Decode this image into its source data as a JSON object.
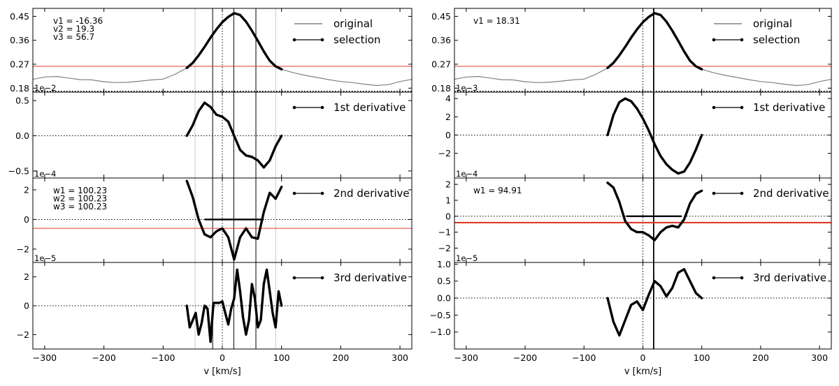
{
  "chart_data": [
    {
      "type": "line",
      "figure": "left",
      "xlabel": "v [km/s]",
      "xlim": [
        -320,
        320
      ],
      "x_ticks": [
        -300,
        -200,
        -100,
        0,
        100,
        200,
        300
      ],
      "vlines_solid": [
        -16.36,
        19.3,
        56.7
      ],
      "vlines_gray": [
        -46,
        90
      ],
      "panels": [
        {
          "id": "spectrum",
          "ylim": [
            0.165,
            0.48
          ],
          "y_ticks": [
            0.18,
            0.27,
            0.36,
            0.45
          ],
          "y_tick_labels": [
            "0.18",
            "0.27",
            "0.36",
            "0.45"
          ],
          "offset_text": "1e−2",
          "hline_red": 0.262,
          "hline_dotted_black": 0.168,
          "annotations": [
            "v1 = -16.36",
            "v2 = 19.3",
            "v3 = 56.7"
          ],
          "legend": [
            "original",
            "selection"
          ],
          "series": [
            {
              "name": "original",
              "color": "#808080",
              "style": "solid",
              "x": [
                -320,
                -300,
                -280,
                -260,
                -240,
                -220,
                -200,
                -180,
                -160,
                -140,
                -120,
                -100,
                -80,
                -60,
                -50,
                -40,
                -30,
                -20,
                -10,
                0,
                10,
                20,
                30,
                40,
                50,
                60,
                70,
                80,
                90,
                100,
                120,
                140,
                160,
                180,
                200,
                220,
                240,
                260,
                280,
                300,
                320
              ],
              "y": [
                0.213,
                0.222,
                0.224,
                0.218,
                0.212,
                0.211,
                0.204,
                0.201,
                0.202,
                0.206,
                0.211,
                0.214,
                0.232,
                0.256,
                0.275,
                0.303,
                0.335,
                0.37,
                0.401,
                0.428,
                0.448,
                0.462,
                0.455,
                0.43,
                0.396,
                0.358,
                0.318,
                0.283,
                0.262,
                0.251,
                0.238,
                0.228,
                0.22,
                0.212,
                0.205,
                0.201,
                0.195,
                0.19,
                0.193,
                0.205,
                0.213
              ]
            },
            {
              "name": "selection",
              "color": "#000000",
              "style": "thick",
              "x": [
                -60,
                -50,
                -40,
                -30,
                -20,
                -10,
                0,
                10,
                20,
                30,
                40,
                50,
                60,
                70,
                80,
                90,
                100
              ],
              "y": [
                0.256,
                0.275,
                0.303,
                0.335,
                0.37,
                0.401,
                0.428,
                0.448,
                0.462,
                0.455,
                0.43,
                0.396,
                0.358,
                0.318,
                0.283,
                0.262,
                0.251
              ]
            }
          ]
        },
        {
          "id": "d1",
          "ylim": [
            -0.6,
            0.62
          ],
          "y_ticks": [
            -0.5,
            0.0,
            0.5
          ],
          "y_tick_labels": [
            "−0.5",
            "0.0",
            "0.5"
          ],
          "offset_text": "1e−4",
          "hline_dotted_black": 0,
          "legend": [
            "1st derivative"
          ],
          "series": [
            {
              "name": "1st derivative",
              "color": "#000000",
              "style": "thick",
              "x": [
                -60,
                -50,
                -40,
                -30,
                -20,
                -10,
                0,
                10,
                20,
                30,
                40,
                50,
                60,
                70,
                80,
                90,
                100
              ],
              "y": [
                0.0,
                0.15,
                0.35,
                0.47,
                0.41,
                0.3,
                0.27,
                0.2,
                0.0,
                -0.2,
                -0.28,
                -0.3,
                -0.35,
                -0.45,
                -0.35,
                -0.15,
                0.0
              ]
            }
          ]
        },
        {
          "id": "d2",
          "ylim": [
            -2.9,
            2.8
          ],
          "y_ticks": [
            -2,
            0,
            2
          ],
          "y_tick_labels": [
            "−2",
            "0",
            "2"
          ],
          "offset_text": "1e−5",
          "hline_red": -0.6,
          "hline_dotted_black": 0,
          "segment_black": {
            "x": [
              -30,
              70
            ],
            "y": 0
          },
          "annotations": [
            "w1 = 100.23",
            "w2 = 100.23",
            "w3 = 100.23"
          ],
          "legend": [
            "2nd derivative"
          ],
          "series": [
            {
              "name": "2nd derivative",
              "color": "#000000",
              "style": "thick",
              "x": [
                -60,
                -50,
                -40,
                -30,
                -20,
                -10,
                0,
                10,
                20,
                30,
                40,
                50,
                60,
                70,
                80,
                90,
                100
              ],
              "y": [
                2.6,
                1.5,
                0.0,
                -1.0,
                -1.2,
                -0.8,
                -0.6,
                -1.2,
                -2.7,
                -1.2,
                -0.6,
                -1.2,
                -1.3,
                0.5,
                1.8,
                1.4,
                2.2
              ]
            }
          ]
        },
        {
          "id": "d3",
          "ylim": [
            -3.0,
            3.0
          ],
          "y_ticks": [
            -2,
            0,
            2
          ],
          "y_tick_labels": [
            "−2",
            "0",
            "2"
          ],
          "hline_dotted_black": 0,
          "legend": [
            "3rd derivative"
          ],
          "series": [
            {
              "name": "3rd derivative",
              "color": "#000000",
              "style": "thick",
              "x": [
                -60,
                -55,
                -50,
                -45,
                -40,
                -35,
                -30,
                -25,
                -20,
                -15,
                -10,
                -5,
                0,
                5,
                10,
                15,
                20,
                25,
                30,
                35,
                40,
                45,
                50,
                55,
                60,
                65,
                70,
                75,
                80,
                85,
                90,
                95,
                100
              ],
              "y": [
                0.0,
                -1.5,
                -1.0,
                -0.5,
                -2.0,
                -1.2,
                0.0,
                -0.2,
                -2.5,
                0.2,
                0.2,
                0.2,
                0.3,
                -0.5,
                -1.3,
                -0.2,
                0.5,
                2.5,
                1.0,
                -0.8,
                -2.0,
                -1.0,
                1.5,
                0.5,
                -1.5,
                -1.0,
                1.5,
                2.5,
                1.0,
                -0.5,
                -1.5,
                1.0,
                0.0
              ]
            }
          ]
        }
      ]
    },
    {
      "type": "line",
      "figure": "right",
      "xlabel": "v [km/s]",
      "xlim": [
        -320,
        320
      ],
      "x_ticks": [
        -300,
        -200,
        -100,
        0,
        100,
        200,
        300
      ],
      "vlines_solid": [
        18.31
      ],
      "vlines_gray": [],
      "panels": [
        {
          "id": "spectrum",
          "ylim": [
            0.165,
            0.48
          ],
          "y_ticks": [
            0.18,
            0.27,
            0.36,
            0.45
          ],
          "y_tick_labels": [
            "0.18",
            "0.27",
            "0.36",
            "0.45"
          ],
          "offset_text": "1e−3",
          "hline_red": 0.262,
          "hline_dotted_black": 0.168,
          "annotations": [
            "v1 = 18.31"
          ],
          "legend": [
            "original",
            "selection"
          ],
          "series": [
            {
              "name": "original",
              "color": "#808080",
              "style": "solid",
              "x": [
                -320,
                -300,
                -280,
                -260,
                -240,
                -220,
                -200,
                -180,
                -160,
                -140,
                -120,
                -100,
                -80,
                -60,
                -50,
                -40,
                -30,
                -20,
                -10,
                0,
                10,
                20,
                30,
                40,
                50,
                60,
                70,
                80,
                90,
                100,
                120,
                140,
                160,
                180,
                200,
                220,
                240,
                260,
                280,
                300,
                320
              ],
              "y": [
                0.213,
                0.222,
                0.224,
                0.218,
                0.212,
                0.211,
                0.204,
                0.201,
                0.202,
                0.206,
                0.211,
                0.214,
                0.232,
                0.256,
                0.275,
                0.303,
                0.335,
                0.37,
                0.401,
                0.428,
                0.448,
                0.462,
                0.455,
                0.43,
                0.396,
                0.358,
                0.318,
                0.283,
                0.262,
                0.251,
                0.238,
                0.228,
                0.22,
                0.212,
                0.205,
                0.201,
                0.195,
                0.19,
                0.193,
                0.205,
                0.213
              ]
            },
            {
              "name": "selection",
              "color": "#000000",
              "style": "thick",
              "x": [
                -60,
                -50,
                -40,
                -30,
                -20,
                -10,
                0,
                10,
                20,
                30,
                40,
                50,
                60,
                70,
                80,
                90,
                100
              ],
              "y": [
                0.256,
                0.275,
                0.303,
                0.335,
                0.37,
                0.401,
                0.428,
                0.448,
                0.462,
                0.455,
                0.43,
                0.396,
                0.358,
                0.318,
                0.283,
                0.262,
                0.251
              ]
            }
          ]
        },
        {
          "id": "d1",
          "ylim": [
            -4.7,
            4.7
          ],
          "y_ticks": [
            -2,
            0,
            2,
            4
          ],
          "y_tick_labels": [
            "−2",
            "0",
            "2",
            "4"
          ],
          "offset_text": "1e−4",
          "hline_dotted_black": 0,
          "legend": [
            "1st derivative"
          ],
          "series": [
            {
              "name": "1st derivative",
              "color": "#000000",
              "style": "thick",
              "x": [
                -60,
                -50,
                -40,
                -30,
                -20,
                -10,
                0,
                10,
                20,
                30,
                40,
                50,
                60,
                70,
                80,
                90,
                100
              ],
              "y": [
                0.0,
                2.2,
                3.6,
                4.0,
                3.7,
                2.9,
                1.8,
                0.5,
                -1.0,
                -2.3,
                -3.2,
                -3.8,
                -4.2,
                -4.0,
                -3.0,
                -1.6,
                0.0
              ]
            }
          ]
        },
        {
          "id": "d2",
          "ylim": [
            -2.9,
            2.4
          ],
          "y_ticks": [
            -2,
            -1,
            0,
            1,
            2
          ],
          "y_tick_labels": [
            "−2",
            "−1",
            "0",
            "1",
            "2"
          ],
          "offset_text": "1e−5",
          "hline_red": -0.4,
          "hline_dotted_black": 0,
          "segment_black": {
            "x": [
              -28,
              66
            ],
            "y": 0
          },
          "annotations": [
            "w1 = 94.91"
          ],
          "legend": [
            "2nd derivative"
          ],
          "series": [
            {
              "name": "2nd derivative",
              "color": "#000000",
              "style": "thick",
              "x": [
                -60,
                -50,
                -40,
                -30,
                -20,
                -10,
                0,
                10,
                20,
                30,
                40,
                50,
                60,
                70,
                80,
                90,
                100
              ],
              "y": [
                2.1,
                1.8,
                0.9,
                -0.3,
                -0.8,
                -1.0,
                -1.0,
                -1.2,
                -1.5,
                -1.0,
                -0.7,
                -0.6,
                -0.7,
                -0.2,
                0.8,
                1.4,
                1.6
              ]
            }
          ]
        },
        {
          "id": "d3",
          "ylim": [
            -1.5,
            1.05
          ],
          "y_ticks": [
            -1.0,
            -0.5,
            0.0,
            0.5,
            1.0
          ],
          "y_tick_labels": [
            "−1.0",
            "−0.5",
            "0.0",
            "0.5",
            "1.0"
          ],
          "hline_dotted_black": 0,
          "legend": [
            "3rd derivative"
          ],
          "series": [
            {
              "name": "3rd derivative",
              "color": "#000000",
              "style": "thick",
              "x": [
                -60,
                -50,
                -40,
                -30,
                -20,
                -10,
                0,
                10,
                20,
                30,
                40,
                50,
                60,
                70,
                80,
                90,
                100
              ],
              "y": [
                0.0,
                -0.7,
                -1.1,
                -0.65,
                -0.2,
                -0.1,
                -0.35,
                0.1,
                0.5,
                0.35,
                0.05,
                0.3,
                0.75,
                0.85,
                0.5,
                0.15,
                0.0
              ]
            }
          ]
        }
      ]
    }
  ]
}
